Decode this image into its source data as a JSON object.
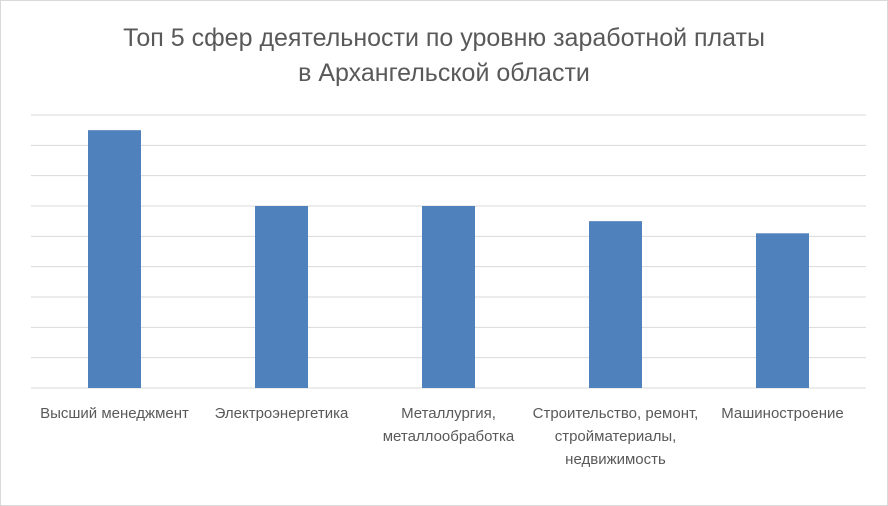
{
  "chart_data": {
    "type": "bar",
    "title_lines": [
      "Топ 5 сфер деятельности по уровню заработной платы",
      "в Архангельской области"
    ],
    "categories": [
      "Высший менеджмент",
      "Электроэнергетика",
      "Металлургия, металлообработка",
      "Строительство, ремонт, стройматериалы, недвижимость",
      "Машиностроение"
    ],
    "values": [
      8.5,
      6.0,
      6.0,
      5.5,
      5.1
    ],
    "ylim": [
      0,
      9
    ],
    "gridlines": true,
    "y_tick_labels_shown": false,
    "bar_color": "#4f81bd",
    "grid_color": "#d9d9d9"
  }
}
